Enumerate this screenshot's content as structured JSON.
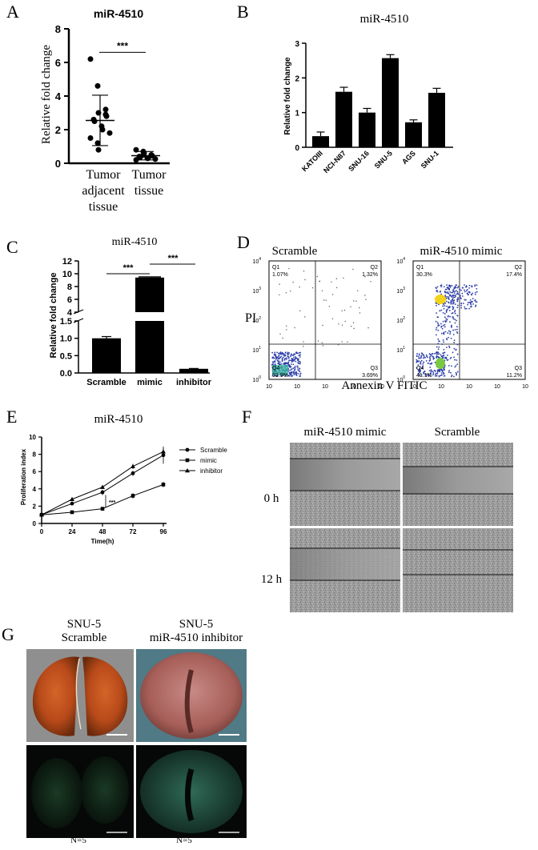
{
  "panels": {
    "A": "A",
    "B": "B",
    "C": "C",
    "D": "D",
    "E": "E",
    "F": "F",
    "G": "G"
  },
  "chart_data": [
    {
      "id": "A",
      "type": "scatter",
      "title": "miR-4510",
      "ylabel": "Relative fold change",
      "ylim": [
        0,
        8
      ],
      "yticks": [
        0,
        2,
        4,
        6,
        8
      ],
      "categories": [
        "Tumor adjacent tissue",
        "Tumor tissue"
      ],
      "category_lines": [
        [
          "Tumor",
          "adjacent",
          "tissue"
        ],
        [
          "Tumor",
          "tissue"
        ]
      ],
      "points": [
        [
          6.2,
          4.6,
          3.0,
          2.9,
          2.8,
          2.6,
          2.5,
          2.2,
          2.0,
          1.8,
          1.5,
          1.2,
          0.8,
          3.2
        ],
        [
          0.8,
          0.7,
          0.6,
          0.5,
          0.45,
          0.4,
          0.35,
          0.3,
          0.3,
          0.25,
          0.2,
          0.5
        ]
      ],
      "mean": [
        2.55,
        0.45
      ],
      "sd": [
        1.5,
        0.25
      ],
      "annotation": "***"
    },
    {
      "id": "B",
      "type": "bar",
      "title": "miR-4510",
      "ylabel": "Relative fold change",
      "ylim": [
        0,
        3
      ],
      "yticks": [
        0,
        1,
        2,
        3
      ],
      "categories": [
        "KATOIII",
        "NCI-N87",
        "SNU-16",
        "SNU-5",
        "AGS",
        "SNU-1"
      ],
      "values": [
        0.32,
        1.6,
        1.0,
        2.57,
        0.72,
        1.57
      ],
      "errors": [
        0.12,
        0.13,
        0.12,
        0.1,
        0.07,
        0.13
      ]
    },
    {
      "id": "C",
      "type": "bar",
      "title": "miR-4510",
      "ylabel": "Relative fold change",
      "axis_break": true,
      "upper_yticks": [
        4,
        6,
        8,
        10,
        12
      ],
      "lower_yticks": [
        0.0,
        0.5,
        1.0,
        1.5
      ],
      "categories": [
        "Scramble",
        "mimic",
        "inhibitor"
      ],
      "values": [
        1.0,
        9.4,
        0.12
      ],
      "errors": [
        0.05,
        0.1,
        0.01
      ],
      "annotations": [
        "***",
        "***"
      ]
    },
    {
      "id": "E",
      "type": "line",
      "title": "miR-4510",
      "xlabel": "Time(h)",
      "ylabel": "Proliferation index",
      "x": [
        0,
        24,
        48,
        72,
        96
      ],
      "ylim": [
        0,
        10
      ],
      "yticks": [
        0,
        2,
        4,
        6,
        8,
        10
      ],
      "series": [
        {
          "name": "Scramble",
          "marker": "circle",
          "values": [
            1.0,
            2.3,
            3.6,
            5.8,
            7.9
          ],
          "errors": [
            0.1,
            0.2,
            0.3,
            0.3,
            1.0
          ]
        },
        {
          "name": "mimic",
          "marker": "square",
          "values": [
            1.0,
            1.3,
            1.7,
            3.2,
            4.5
          ],
          "errors": [
            0.1,
            0.1,
            0.2,
            0.3,
            0.3
          ]
        },
        {
          "name": "inhibitor",
          "marker": "triangle",
          "values": [
            1.0,
            2.8,
            4.2,
            6.6,
            8.3
          ],
          "errors": [
            0.1,
            0.2,
            0.2,
            0.3,
            0.4
          ]
        }
      ],
      "annotation": "***"
    }
  ],
  "flow": {
    "xlabel": "Annexin V FITIC",
    "ylabel": "PI",
    "panels": [
      {
        "title": "Scramble",
        "q1": "1.07%",
        "q2": "1.32%",
        "q3": "3.69%",
        "q4": "93.9%"
      },
      {
        "title": "miR-4510 mimic",
        "q1": "30.3%",
        "q2": "17.4%",
        "q3": "11.2%",
        "q4": "41.1%"
      }
    ],
    "quad_names": [
      "Q1",
      "Q2",
      "Q3",
      "Q4"
    ],
    "ticks": [
      "10",
      "10",
      "10",
      "10",
      "10"
    ],
    "exps": [
      "0",
      "1",
      "2",
      "3",
      "4"
    ]
  },
  "wound": {
    "cols": [
      "miR-4510 mimic",
      "Scramble"
    ],
    "rows": [
      "0 h",
      "12 h"
    ]
  },
  "xeno": {
    "col1": [
      "SNU-5",
      "Scramble"
    ],
    "col2": [
      "SNU-5",
      "miR-4510 inhibitor"
    ],
    "n": [
      "N=5",
      "N=5"
    ]
  },
  "colors": {
    "bar": "#000000",
    "flow_dot": "#2a3ca8",
    "flow_hot": "#f2d21a",
    "tissue": "#b84a1a",
    "gfp": "#1f5a3a"
  }
}
